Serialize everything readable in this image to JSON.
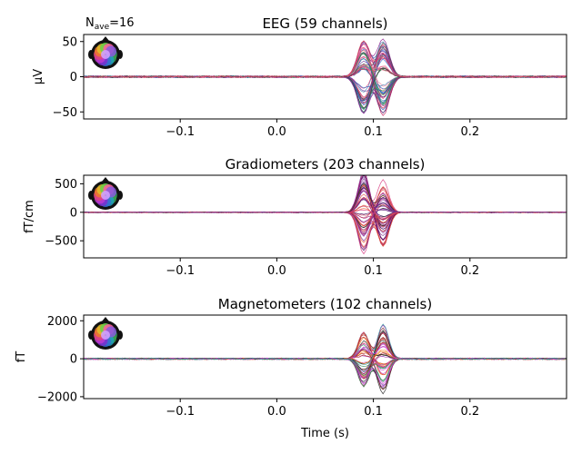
{
  "annotation": {
    "nave_label": "N",
    "nave_sub": "ave",
    "nave_value": "=16"
  },
  "xlabel": "Time (s)",
  "chart_data": [
    {
      "type": "line",
      "title": "EEG (59 channels)",
      "ylabel": "µV",
      "xlim": [
        -0.2,
        0.3
      ],
      "ylim": [
        -60,
        60
      ],
      "xticks": [
        -0.1,
        0.0,
        0.1,
        0.2
      ],
      "xtick_labels": [
        "−0.1",
        "0.0",
        "0.1",
        "0.2"
      ],
      "yticks": [
        50,
        0,
        -50
      ],
      "ytick_labels": [
        "50",
        "0",
        "−50"
      ],
      "series_count": 59,
      "components": [
        {
          "t": 0.09,
          "width": 0.009,
          "peak_min": 10,
          "peak_max": 52
        },
        {
          "t": 0.11,
          "width": 0.009,
          "peak_min": 10,
          "peak_max": 57
        }
      ],
      "noise": 1.2,
      "colors": [
        "#1f4fb5",
        "#2b6ccf",
        "#2e8b57",
        "#3aa04a",
        "#6b3fa0",
        "#8b1a8b",
        "#c2185b",
        "#e0457b",
        "#f07f9b",
        "#3d3d3d",
        "#d84a5a",
        "#4682b4"
      ]
    },
    {
      "type": "line",
      "title": "Gradiometers (203 channels)",
      "ylabel": "fT/cm",
      "xlim": [
        -0.2,
        0.3
      ],
      "ylim": [
        -800,
        650
      ],
      "xticks": [
        -0.1,
        0.0,
        0.1,
        0.2
      ],
      "xtick_labels": [
        "−0.1",
        "0.0",
        "0.1",
        "0.2"
      ],
      "yticks": [
        500,
        0,
        -500
      ],
      "ytick_labels": [
        "500",
        "0",
        "−500"
      ],
      "series_count": 60,
      "components": [
        {
          "t": 0.09,
          "width": 0.008,
          "peak_min": 30,
          "peak_max": 740
        },
        {
          "t": 0.11,
          "width": 0.008,
          "peak_min": 30,
          "peak_max": 620
        }
      ],
      "noise": 8,
      "colors": [
        "#3b0a5a",
        "#5a1a7a",
        "#7b2a8e",
        "#9a1f7a",
        "#c23b5a",
        "#e0453a",
        "#f06a3a",
        "#d6307a",
        "#2d2d2d",
        "#8e44ad"
      ]
    },
    {
      "type": "line",
      "title": "Magnetometers (102 channels)",
      "ylabel": "fT",
      "xlim": [
        -0.2,
        0.3
      ],
      "ylim": [
        -2100,
        2300
      ],
      "xticks": [
        -0.1,
        0.0,
        0.1,
        0.2
      ],
      "xtick_labels": [
        "−0.1",
        "0.0",
        "0.1",
        "0.2"
      ],
      "yticks": [
        2000,
        0,
        -2000
      ],
      "ytick_labels": [
        "2000",
        "0",
        "−2000"
      ],
      "series_count": 50,
      "components": [
        {
          "t": 0.09,
          "width": 0.008,
          "peak_min": 100,
          "peak_max": 1500
        },
        {
          "t": 0.11,
          "width": 0.008,
          "peak_min": 100,
          "peak_max": 1900
        }
      ],
      "noise": 40,
      "colors": [
        "#1a1a1a",
        "#7a1f1f",
        "#b22222",
        "#e0453a",
        "#f07a1a",
        "#c040c0",
        "#9a2ab0",
        "#d84ad8",
        "#2e8b57",
        "#3aa0a0"
      ]
    }
  ]
}
